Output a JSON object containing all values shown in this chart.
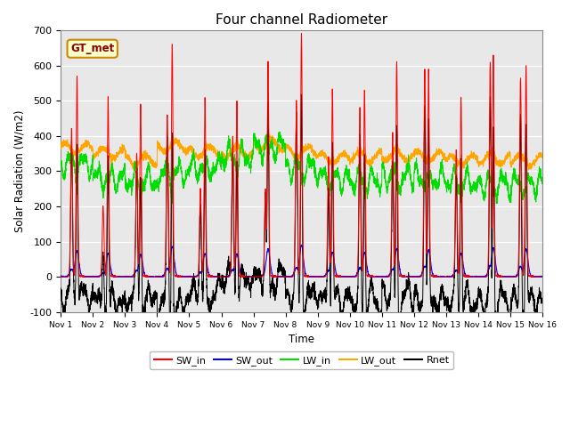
{
  "title": "Four channel Radiometer",
  "xlabel": "Time",
  "ylabel": "Solar Radiation (W/m2)",
  "ylim": [
    -100,
    700
  ],
  "xlim": [
    0,
    15
  ],
  "annotation_text": "GT_met",
  "legend_entries": [
    "SW_in",
    "SW_out",
    "LW_in",
    "LW_out",
    "Rnet"
  ],
  "colors": {
    "SW_in": "#ff0000",
    "SW_out": "#0000ff",
    "LW_in": "#00dd00",
    "LW_out": "#ffa500",
    "Rnet": "#000000",
    "background": "#e8e8e8",
    "annotation_bg": "#ffffcc",
    "annotation_border": "#cc8800"
  },
  "xtick_labels": [
    "Nov 1",
    "Nov 2",
    "Nov 3",
    "Nov 4",
    "Nov 5",
    "Nov 6",
    "Nov 7",
    "Nov 8",
    "Nov 9",
    "Nov 10",
    "Nov 11",
    "Nov 12",
    "Nov 13",
    "Nov 14",
    "Nov 15",
    "Nov 16"
  ],
  "ytick_values": [
    -100,
    0,
    100,
    200,
    300,
    400,
    500,
    600,
    700
  ],
  "num_days": 15,
  "points_per_day": 288,
  "day_peaks_SW": [
    570,
    510,
    490,
    660,
    510,
    500,
    610,
    690,
    535,
    530,
    610,
    590,
    510,
    630,
    600
  ],
  "day_peaks_SW2": [
    420,
    200,
    350,
    460,
    250,
    400,
    250,
    500,
    340,
    480,
    410,
    590,
    360,
    610,
    565
  ],
  "lw_in_base": [
    320,
    280,
    275,
    295,
    310,
    340,
    370,
    310,
    280,
    275,
    285,
    280,
    270,
    265,
    265
  ],
  "lw_out_base": [
    365,
    350,
    330,
    370,
    355,
    355,
    375,
    355,
    335,
    340,
    345,
    340,
    330,
    335,
    330
  ]
}
